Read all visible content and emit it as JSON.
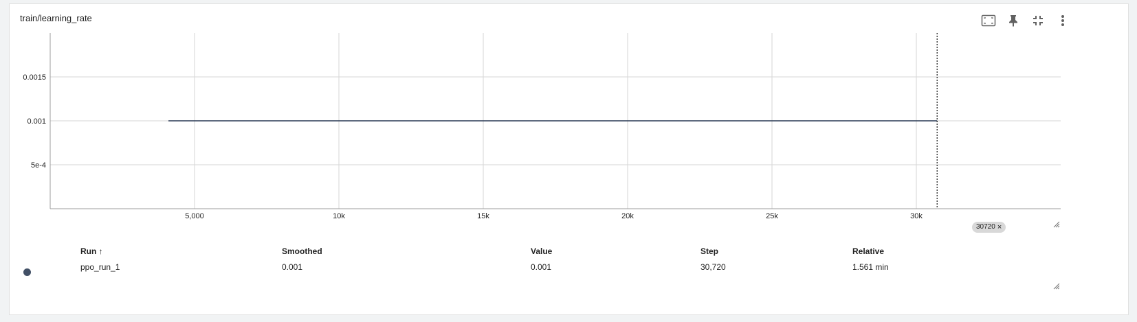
{
  "card": {
    "title": "train/learning_rate",
    "toolbar": {
      "fit_domain_icon": "fit-domain-icon",
      "pin_icon": "pin-icon",
      "collapse_icon": "collapse-icon",
      "more_icon": "more-vert-icon"
    }
  },
  "chart_data": {
    "type": "line",
    "x_ticks": [
      "5,000",
      "10k",
      "15k",
      "20k",
      "25k",
      "30k"
    ],
    "x_tick_values": [
      5000,
      10000,
      15000,
      20000,
      25000,
      30000
    ],
    "y_ticks": [
      "5e-4",
      "0.001",
      "0.0015"
    ],
    "y_tick_values": [
      0.0005,
      0.001,
      0.0015
    ],
    "xlim": [
      0,
      35000
    ],
    "ylim": [
      0,
      0.002
    ],
    "grid": true,
    "series": [
      {
        "name": "ppo_run_1",
        "color": "#2a3a55",
        "x": [
          4096,
          30720
        ],
        "y": [
          0.001,
          0.001
        ]
      }
    ],
    "cursor_step": 30720
  },
  "step_badge": {
    "label": "30720",
    "close": "×"
  },
  "table": {
    "headers": {
      "run": "Run ↑",
      "smoothed": "Smoothed",
      "value": "Value",
      "step": "Step",
      "relative": "Relative"
    },
    "rows": [
      {
        "run": "ppo_run_1",
        "smoothed": "0.001",
        "value": "0.001",
        "step": "30,720",
        "relative": "1.561 min",
        "color": "#425066"
      }
    ]
  }
}
